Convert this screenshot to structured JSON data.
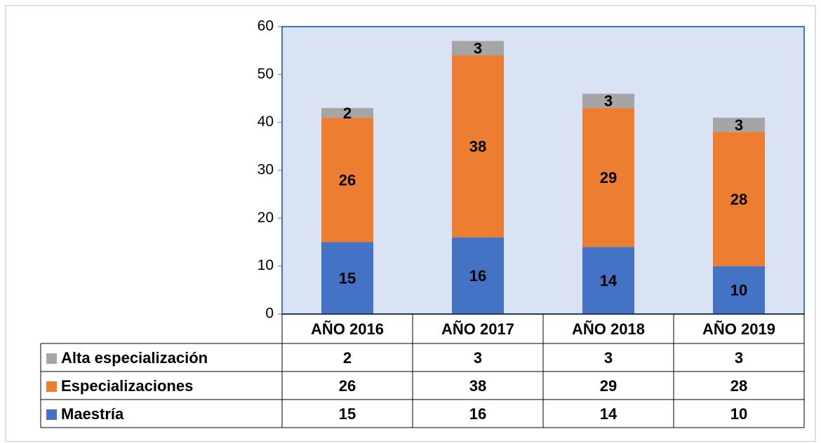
{
  "chart_data": {
    "type": "stacked_bar",
    "categories": [
      "AÑO 2016",
      "AÑO 2017",
      "AÑO 2018",
      "AÑO 2019"
    ],
    "series": [
      {
        "name": "Maestría",
        "color": "#4472c4",
        "values": [
          15,
          16,
          14,
          10
        ]
      },
      {
        "name": "Especializaciones",
        "color": "#ed7d31",
        "values": [
          26,
          38,
          29,
          28
        ]
      },
      {
        "name": "Alta especialización",
        "color": "#a5a5a5",
        "values": [
          2,
          3,
          3,
          3
        ]
      }
    ],
    "ylim": [
      0,
      60
    ],
    "yticks": [
      0,
      10,
      20,
      30,
      40,
      50,
      60
    ],
    "data_table": true
  }
}
